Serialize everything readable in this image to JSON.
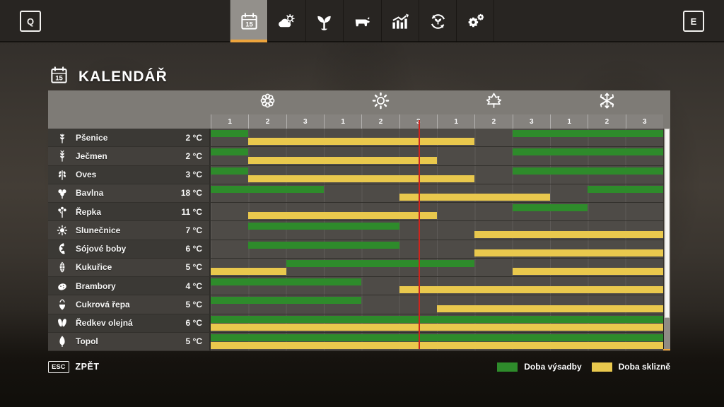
{
  "colors": {
    "plant_green": "#2e8b2b",
    "harvest_yellow": "#e9c84d",
    "accent_orange": "#eda43c",
    "current_day_red": "#cf241c"
  },
  "topbar": {
    "left_key_label": "Q",
    "right_key_label": "E",
    "calendar_day": "15",
    "tabs": [
      {
        "name": "calendar",
        "icon": "calendar-icon",
        "selected": true
      },
      {
        "name": "weather",
        "icon": "weather-icon",
        "selected": false
      },
      {
        "name": "crops",
        "icon": "sprout-icon",
        "selected": false
      },
      {
        "name": "animals",
        "icon": "cow-icon",
        "selected": false
      },
      {
        "name": "statistics",
        "icon": "stats-icon",
        "selected": false
      },
      {
        "name": "production",
        "icon": "cycle-icon",
        "selected": false
      },
      {
        "name": "settings",
        "icon": "gear-icon",
        "selected": false
      }
    ]
  },
  "header": {
    "title": "KALENDÁŘ"
  },
  "calendar": {
    "seasons": [
      {
        "name": "spring",
        "icon": "flower-icon"
      },
      {
        "name": "summer",
        "icon": "sun-icon"
      },
      {
        "name": "autumn",
        "icon": "maple-leaf-icon"
      },
      {
        "name": "winter",
        "icon": "snowflake-icon"
      }
    ],
    "month_labels": [
      "1",
      "2",
      "3"
    ],
    "current_position_months": 5.52,
    "crops": [
      {
        "name": "Pšenice",
        "temp": "2 °C",
        "icon": "wheat-icon",
        "plant": [
          [
            1,
            1
          ],
          [
            9,
            12
          ]
        ],
        "harvest": [
          [
            2,
            7
          ]
        ]
      },
      {
        "name": "Ječmen",
        "temp": "2 °C",
        "icon": "barley-icon",
        "plant": [
          [
            1,
            1
          ],
          [
            9,
            12
          ]
        ],
        "harvest": [
          [
            2,
            6
          ]
        ]
      },
      {
        "name": "Oves",
        "temp": "3 °C",
        "icon": "oat-icon",
        "plant": [
          [
            1,
            1
          ],
          [
            9,
            12
          ]
        ],
        "harvest": [
          [
            2,
            7
          ]
        ]
      },
      {
        "name": "Bavlna",
        "temp": "18 °C",
        "icon": "cotton-icon",
        "plant": [
          [
            1,
            3
          ],
          [
            11,
            12
          ]
        ],
        "harvest": [
          [
            6,
            9
          ]
        ]
      },
      {
        "name": "Řepka",
        "temp": "11 °C",
        "icon": "canola-icon",
        "plant": [
          [
            9,
            10
          ]
        ],
        "harvest": [
          [
            2,
            6
          ]
        ]
      },
      {
        "name": "Slunečnice",
        "temp": "7 °C",
        "icon": "sunflower-icon",
        "plant": [
          [
            2,
            5
          ]
        ],
        "harvest": [
          [
            8,
            12
          ]
        ]
      },
      {
        "name": "Sójové boby",
        "temp": "6 °C",
        "icon": "soybean-icon",
        "plant": [
          [
            2,
            5
          ]
        ],
        "harvest": [
          [
            8,
            12
          ]
        ]
      },
      {
        "name": "Kukuřice",
        "temp": "5 °C",
        "icon": "corn-icon",
        "plant": [
          [
            3,
            7
          ]
        ],
        "harvest": [
          [
            1,
            2
          ],
          [
            9,
            12
          ]
        ]
      },
      {
        "name": "Brambory",
        "temp": "4 °C",
        "icon": "potato-icon",
        "plant": [
          [
            1,
            4
          ]
        ],
        "harvest": [
          [
            6,
            12
          ]
        ]
      },
      {
        "name": "Cukrová řepa",
        "temp": "5 °C",
        "icon": "sugar-beet-icon",
        "plant": [
          [
            1,
            4
          ]
        ],
        "harvest": [
          [
            7,
            12
          ]
        ]
      },
      {
        "name": "Ředkev olejná",
        "temp": "6 °C",
        "icon": "radish-icon",
        "plant": [
          [
            1,
            12
          ]
        ],
        "harvest": [
          [
            1,
            12
          ]
        ]
      },
      {
        "name": "Topol",
        "temp": "5 °C",
        "icon": "poplar-icon",
        "plant": [
          [
            1,
            12
          ]
        ],
        "harvest": [
          [
            1,
            12
          ]
        ]
      }
    ],
    "legend": [
      {
        "label": "Doba výsadby",
        "type": "plant"
      },
      {
        "label": "Doba sklizně",
        "type": "harvest"
      }
    ],
    "scrollbar": {
      "thumb_top_pct": 0,
      "thumb_height_pct": 86
    }
  },
  "bottombar": {
    "esc_key_label": "ESC",
    "back_label": "ZPĚT"
  }
}
